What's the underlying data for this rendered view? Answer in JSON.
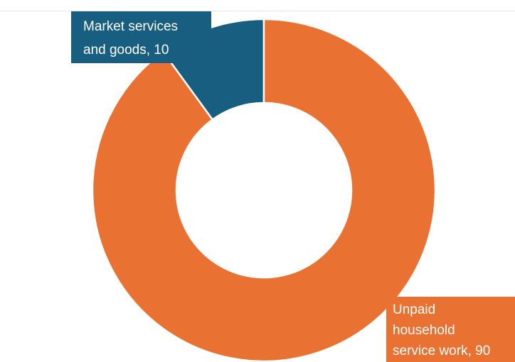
{
  "chart_data": {
    "type": "donut",
    "values": [
      10,
      90
    ],
    "value_labels": [
      [
        "Market services",
        "and goods, 10"
      ],
      [
        "Unpaid",
        "household",
        "service work, 90"
      ]
    ],
    "colors": [
      "#175e80",
      "#e97132"
    ]
  }
}
